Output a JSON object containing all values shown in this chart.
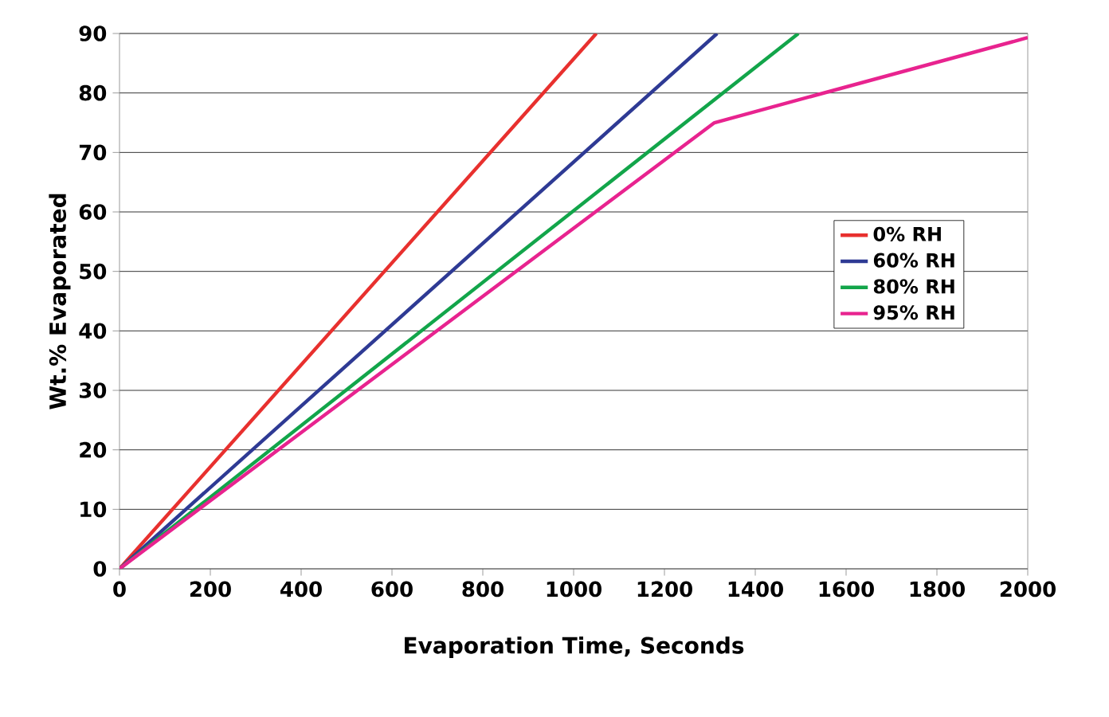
{
  "chart_data": {
    "type": "line",
    "xlabel": "Evaporation Time, Seconds",
    "ylabel": "Wt.% Evaporated",
    "xlim": [
      0,
      2000
    ],
    "ylim": [
      0,
      90
    ],
    "xticks": [
      0,
      200,
      400,
      600,
      800,
      1000,
      1200,
      1400,
      1600,
      1800,
      2000
    ],
    "yticks": [
      0,
      10,
      20,
      30,
      40,
      50,
      60,
      70,
      80,
      90
    ],
    "grid": "y",
    "legend": "right",
    "marker": "none",
    "line_style": "solid",
    "series": [
      {
        "name": "0% RH",
        "color": "#e8302e",
        "x": [
          0,
          1050
        ],
        "values": [
          0,
          90
        ]
      },
      {
        "name": "60% RH",
        "color": "#2e3a94",
        "x": [
          0,
          1316
        ],
        "values": [
          0,
          90
        ]
      },
      {
        "name": "80% RH",
        "color": "#12a54a",
        "x": [
          0,
          1495
        ],
        "values": [
          0,
          90
        ]
      },
      {
        "name": "95% RH",
        "color": "#e8238f",
        "x": [
          0,
          1310,
          2000
        ],
        "values": [
          0,
          75,
          89.3
        ]
      }
    ]
  }
}
